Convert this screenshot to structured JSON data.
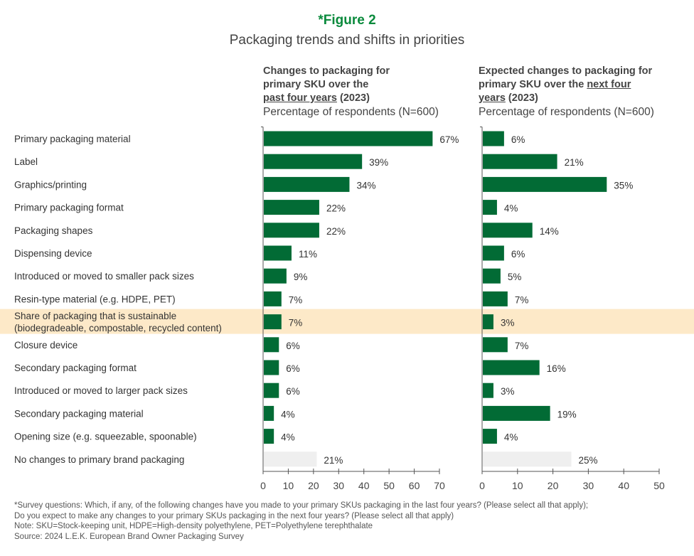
{
  "header": {
    "figure": "*Figure 2",
    "subtitle": "Packaging trends and shifts in priorities"
  },
  "panels": [
    {
      "line1": "Changes to packaging for",
      "line2": "primary SKU over the",
      "underlined": "past four years",
      "year": " (2023)",
      "metric": "Percentage of respondents (N=600)"
    },
    {
      "line1": "Expected changes to packaging for",
      "line2": "primary SKU over the ",
      "underlined2": "next four",
      "underlined": "years",
      "year": " (2023)",
      "metric": "Percentage of respondents (N=600)"
    }
  ],
  "chart_data": {
    "type": "bar",
    "orientation": "horizontal",
    "categories": [
      [
        "Primary packaging material"
      ],
      [
        "Label"
      ],
      [
        "Graphics/printing"
      ],
      [
        "Primary packaging format"
      ],
      [
        "Packaging shapes"
      ],
      [
        "Dispensing device"
      ],
      [
        "Introduced or moved to smaller pack sizes"
      ],
      [
        "Resin-type material (e.g. HDPE, PET)"
      ],
      [
        "Share of packaging that is sustainable",
        "(biodegradeable, compostable, recycled content)"
      ],
      [
        "Closure device"
      ],
      [
        "Secondary packaging format"
      ],
      [
        "Introduced or moved to larger pack sizes"
      ],
      [
        "Secondary packaging material"
      ],
      [
        "Opening size (e.g. squeezable, spoonable)"
      ],
      [
        "No changes to primary brand packaging"
      ]
    ],
    "highlighted_index": 8,
    "series": [
      {
        "name": "Past four years (2023)",
        "values": [
          67,
          39,
          34,
          22,
          22,
          11,
          9,
          7,
          7,
          6,
          6,
          6,
          4,
          4,
          21
        ],
        "labels": [
          "67%",
          "39%",
          "34%",
          "22%",
          "22%",
          "11%",
          "9%",
          "7%",
          "7%",
          "6%",
          "6%",
          "6%",
          "4%",
          "4%",
          "21%"
        ],
        "xlim": [
          0,
          70
        ],
        "ticks": [
          "0",
          "10",
          "20",
          "30",
          "40",
          "50",
          "60",
          "70"
        ]
      },
      {
        "name": "Next four years (2023)",
        "values": [
          6,
          21,
          35,
          4,
          14,
          6,
          5,
          7,
          3,
          7,
          16,
          3,
          19,
          4,
          25
        ],
        "labels": [
          "6%",
          "21%",
          "35%",
          "4%",
          "14%",
          "6%",
          "5%",
          "7%",
          "3%",
          "7%",
          "16%",
          "3%",
          "19%",
          "4%",
          "25%"
        ],
        "xlim": [
          0,
          50
        ],
        "ticks": [
          "0",
          "10",
          "20",
          "30",
          "40",
          "50"
        ]
      }
    ],
    "colors": {
      "bar": "#026b35",
      "no_change_bar": "#efefef",
      "highlight": "#fde9c8"
    }
  },
  "notes": [
    "*Survey questions: Which, if any, of the following changes have you made to your primary SKUs packaging in the last four years? (Please select all that apply);",
    "Do you expect to make any changes to your primary SKUs packaging in the next four years? (Please select all that apply)",
    "Note: SKU=Stock-keeping unit, HDPE=High-density polyethylene, PET=Polyethylene terephthalate",
    "Source: 2024 L.E.K. European Brand Owner Packaging Survey"
  ]
}
